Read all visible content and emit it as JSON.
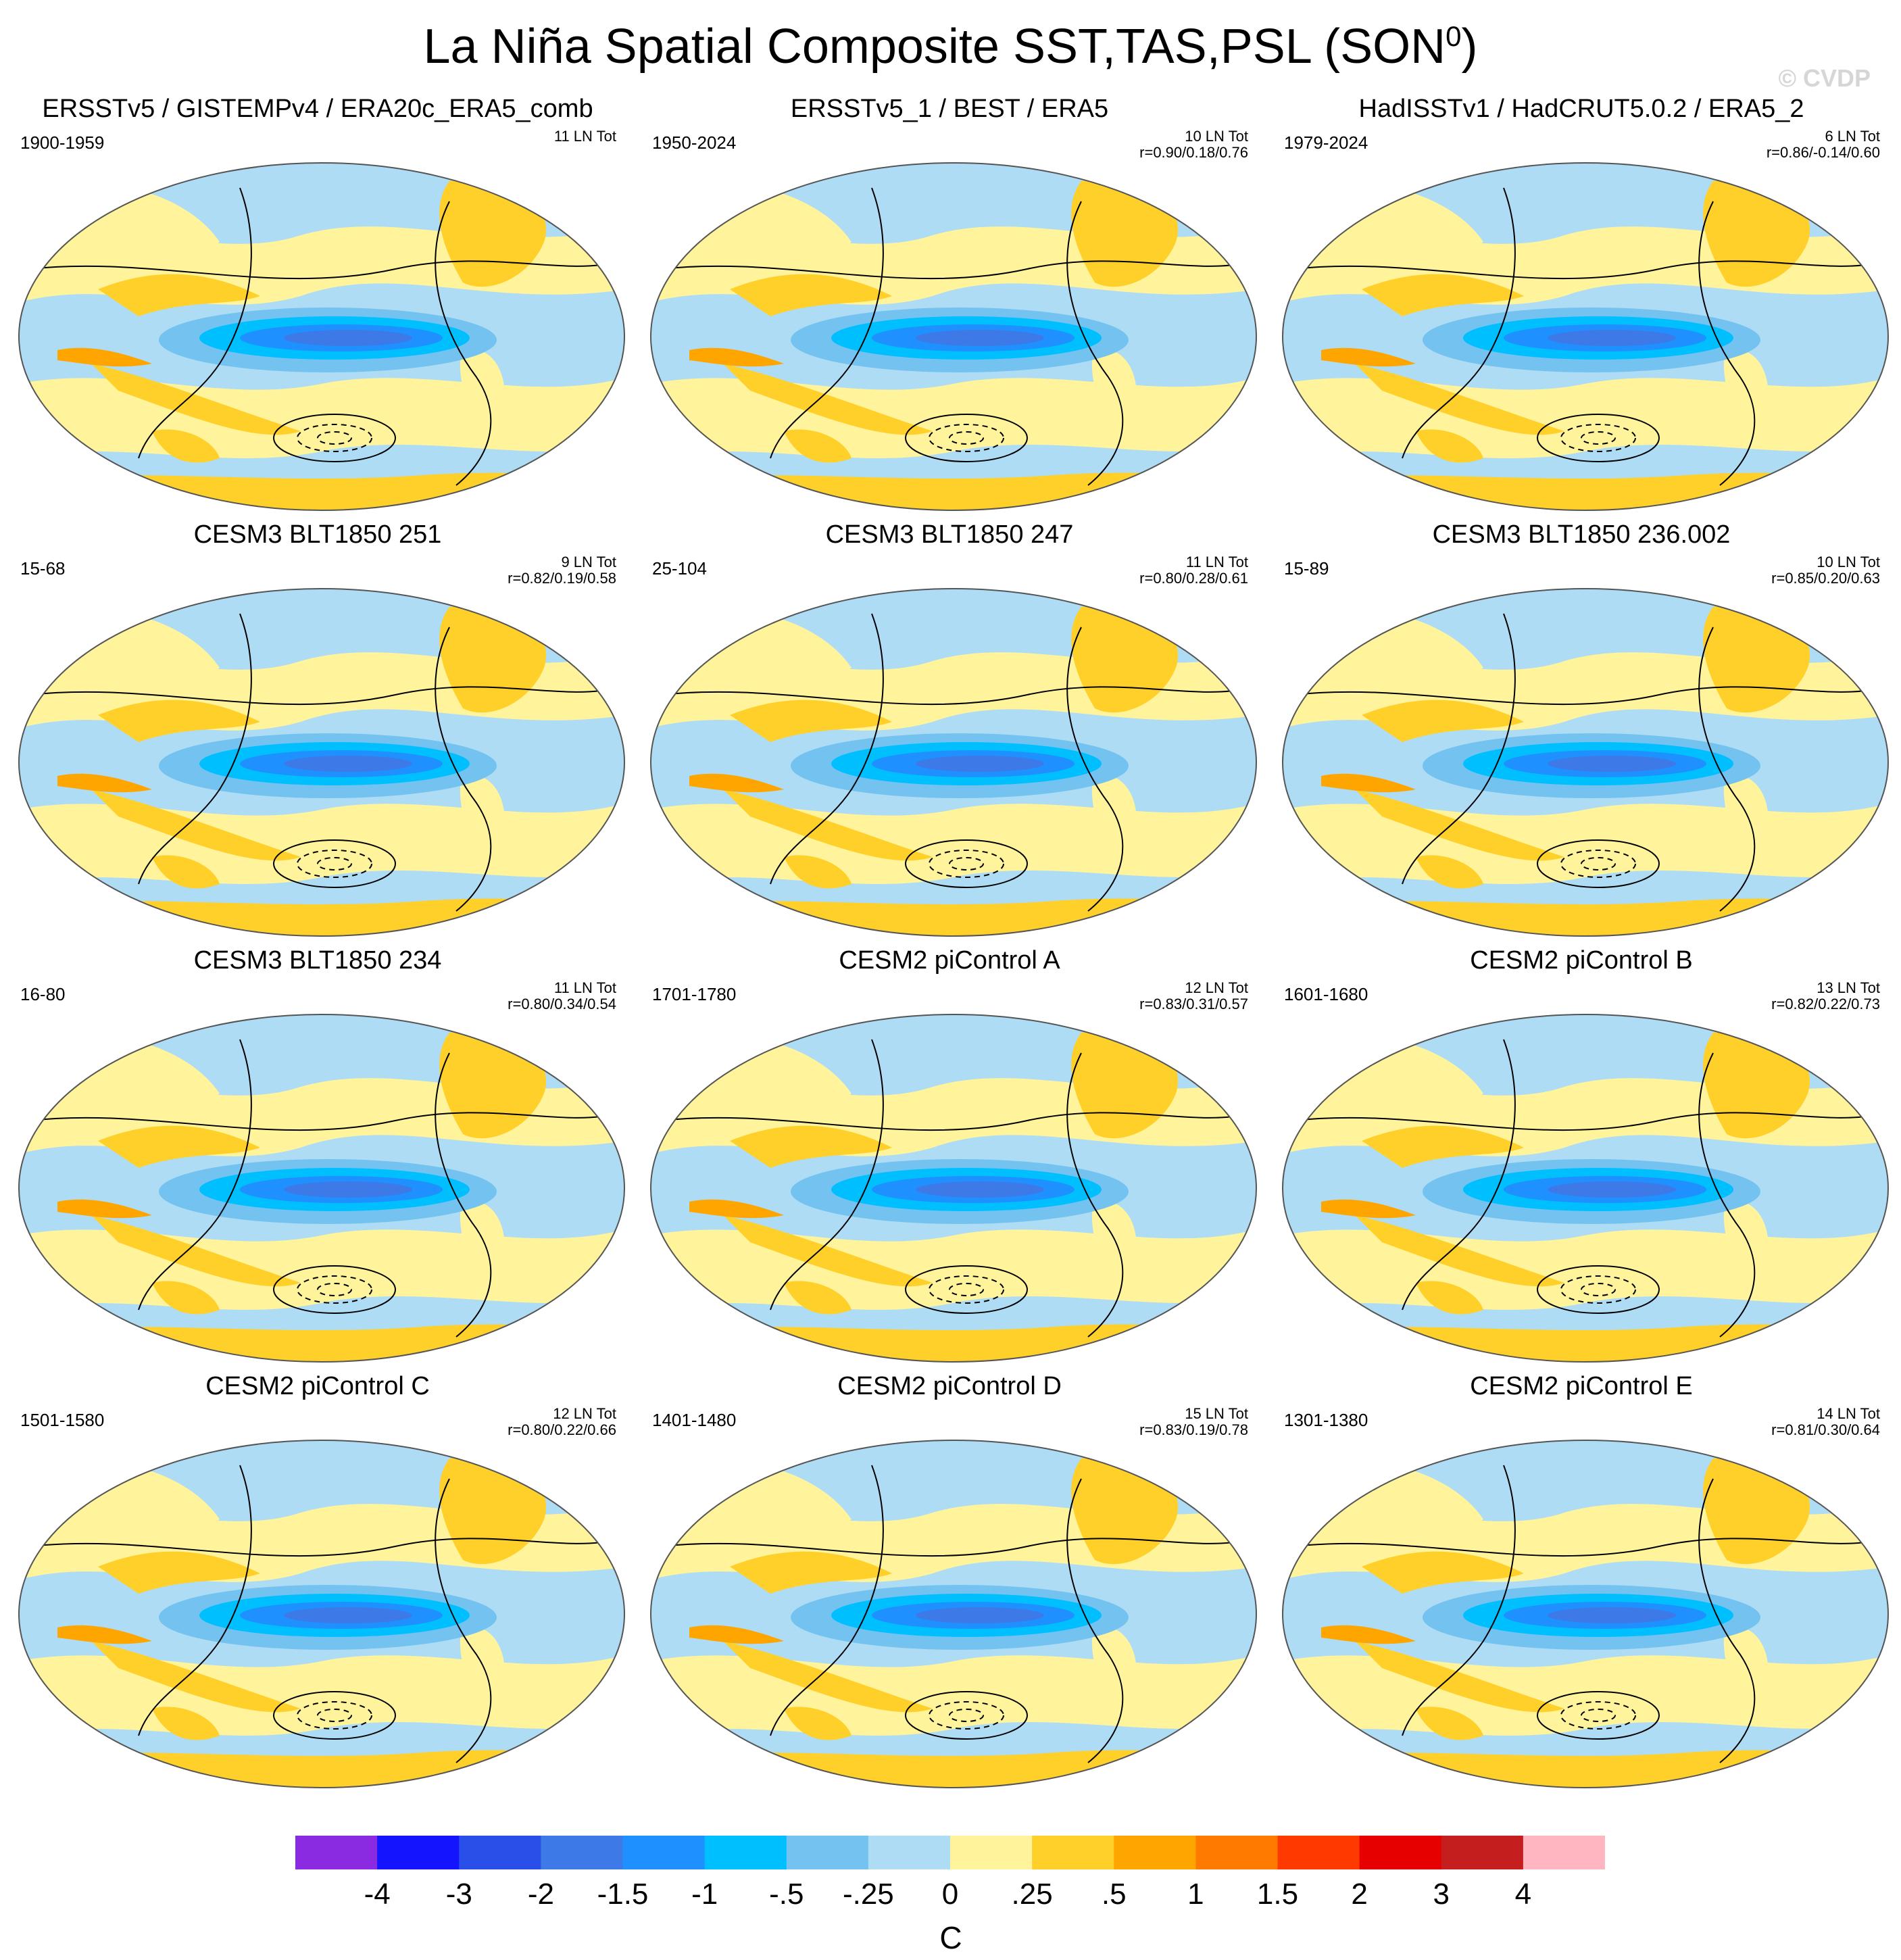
{
  "title": "La Niña Spatial Composite SST,TAS,PSL (SON",
  "title_sup": "0",
  "title_close": ")",
  "watermark": "© CVDP",
  "chart_data": {
    "type": "heatmap",
    "description_type": "composite maps grid",
    "panels": [
      {
        "title": "ERSSTv5 / GISTEMPv4 / ERA20c_ERA5_comb",
        "period": "1900-1959",
        "count": "11 LN Tot",
        "stats": ""
      },
      {
        "title": "ERSSTv5_1 / BEST / ERA5",
        "period": "1950-2024",
        "count": "10 LN Tot",
        "stats": "r=0.90/0.18/0.76"
      },
      {
        "title": "HadISSTv1 / HadCRUT5.0.2 / ERA5_2",
        "period": "1979-2024",
        "count": "6 LN Tot",
        "stats": "r=0.86/-0.14/0.60"
      },
      {
        "title": "CESM3 BLT1850 251",
        "period": "15-68",
        "count": "9 LN Tot",
        "stats": "r=0.82/0.19/0.58"
      },
      {
        "title": "CESM3 BLT1850 247",
        "period": "25-104",
        "count": "11 LN Tot",
        "stats": "r=0.80/0.28/0.61"
      },
      {
        "title": "CESM3 BLT1850 236.002",
        "period": "15-89",
        "count": "10 LN Tot",
        "stats": "r=0.85/0.20/0.63"
      },
      {
        "title": "CESM3 BLT1850 234",
        "period": "16-80",
        "count": "11 LN Tot",
        "stats": "r=0.80/0.34/0.54"
      },
      {
        "title": "CESM2 piControl A",
        "period": "1701-1780",
        "count": "12 LN Tot",
        "stats": "r=0.83/0.31/0.57"
      },
      {
        "title": "CESM2 piControl B",
        "period": "1601-1680",
        "count": "13 LN Tot",
        "stats": "r=0.82/0.22/0.73"
      },
      {
        "title": "CESM2 piControl C",
        "period": "1501-1580",
        "count": "12 LN Tot",
        "stats": "r=0.80/0.22/0.66"
      },
      {
        "title": "CESM2 piControl D",
        "period": "1401-1480",
        "count": "15 LN Tot",
        "stats": "r=0.83/0.19/0.78"
      },
      {
        "title": "CESM2 piControl E",
        "period": "1301-1380",
        "count": "14 LN Tot",
        "stats": "r=0.81/0.30/0.64"
      }
    ],
    "colorbar": {
      "labels": [
        "-4",
        "-3",
        "-2",
        "-1.5",
        "-1",
        "-.5",
        "-.25",
        "0",
        ".25",
        ".5",
        "1",
        "1.5",
        "2",
        "3",
        "4"
      ],
      "colors": [
        "#8a2be2",
        "#1414ff",
        "#2a4fe8",
        "#3d7ae8",
        "#1e90ff",
        "#00bfff",
        "#73c2f0",
        "#aedcf5",
        "#fff49b",
        "#ffd02a",
        "#ffa500",
        "#ff7b00",
        "#ff3a00",
        "#e60000",
        "#c41e1e",
        "#ffb6c1"
      ],
      "unit": "C"
    }
  }
}
